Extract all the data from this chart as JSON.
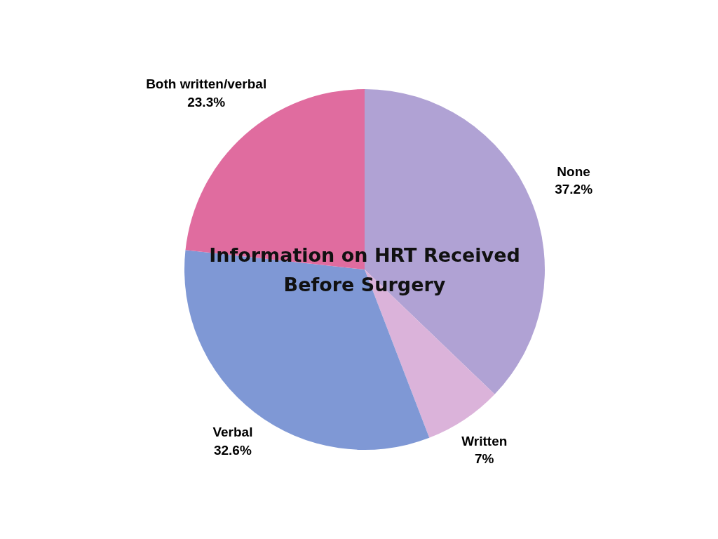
{
  "chart_data": {
    "type": "pie",
    "title": "Information on HRT Received Before Surgery",
    "categories": [
      "None",
      "Written",
      "Verbal",
      "Both written/verbal"
    ],
    "values": [
      37.2,
      7,
      32.6,
      23.3
    ],
    "value_labels": [
      "37.2%",
      "7%",
      "32.6%",
      "23.3%"
    ],
    "colors": [
      "#b0a2d4",
      "#dbb3da",
      "#7f98d5",
      "#e06c9f"
    ]
  }
}
